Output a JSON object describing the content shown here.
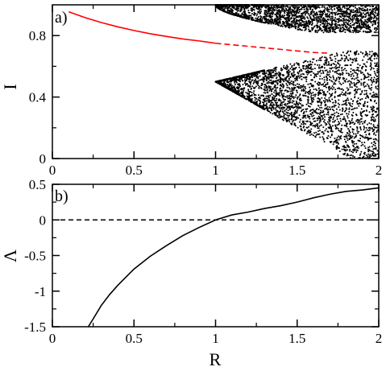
{
  "chart_data": [
    {
      "panel": "a)",
      "type": "scatter",
      "xlabel": "",
      "ylabel": "I",
      "xlim": [
        0,
        2
      ],
      "ylim": [
        0,
        1
      ],
      "xticks": [
        "0",
        "0.5",
        "1",
        "1.5",
        "2"
      ],
      "yticks": [
        "0",
        "0.4",
        "0.8"
      ],
      "fixed_point_curve": {
        "color": "#ff0000",
        "stable_solid": [
          [
            0.1,
            0.955
          ],
          [
            0.2,
            0.917
          ],
          [
            0.3,
            0.885
          ],
          [
            0.4,
            0.857
          ],
          [
            0.5,
            0.833
          ],
          [
            0.6,
            0.812
          ],
          [
            0.7,
            0.794
          ],
          [
            0.8,
            0.778
          ],
          [
            0.9,
            0.765
          ],
          [
            1.0,
            0.75
          ]
        ],
        "unstable_dashed": [
          [
            1.0,
            0.75
          ],
          [
            1.1,
            0.74
          ],
          [
            1.2,
            0.73
          ],
          [
            1.3,
            0.72
          ],
          [
            1.4,
            0.71
          ],
          [
            1.5,
            0.7
          ],
          [
            1.6,
            0.69
          ],
          [
            1.7,
            0.685
          ]
        ]
      },
      "attractor_dots": {
        "color": "#000000",
        "description_bands": [
          {
            "r_start": 1.0,
            "r_end": 2.0,
            "upper_band": [
              0.83,
              1.0
            ],
            "lower_band": [
              0.0,
              0.5
            ]
          }
        ]
      }
    },
    {
      "panel": "b)",
      "type": "line",
      "xlabel": "R",
      "ylabel": "Λ",
      "xlim": [
        0,
        2
      ],
      "ylim": [
        -1.5,
        0.5
      ],
      "xticks": [
        "0",
        "0.5",
        "1",
        "1.5",
        "2"
      ],
      "yticks": [
        "-1.5",
        "-1",
        "-0.5",
        "0",
        "0.5"
      ],
      "zero_line": {
        "y": 0,
        "style": "dashed"
      },
      "series": [
        {
          "color": "#000000",
          "points": [
            [
              0.22,
              -1.5
            ],
            [
              0.25,
              -1.39
            ],
            [
              0.3,
              -1.2
            ],
            [
              0.35,
              -1.05
            ],
            [
              0.4,
              -0.92
            ],
            [
              0.5,
              -0.69
            ],
            [
              0.6,
              -0.51
            ],
            [
              0.7,
              -0.36
            ],
            [
              0.8,
              -0.22
            ],
            [
              0.9,
              -0.105
            ],
            [
              1.0,
              0.0
            ],
            [
              1.1,
              0.07
            ],
            [
              1.2,
              0.11
            ],
            [
              1.3,
              0.16
            ],
            [
              1.4,
              0.2
            ],
            [
              1.5,
              0.25
            ],
            [
              1.6,
              0.31
            ],
            [
              1.7,
              0.36
            ],
            [
              1.8,
              0.4
            ],
            [
              1.9,
              0.42
            ],
            [
              2.0,
              0.45
            ]
          ]
        }
      ]
    }
  ]
}
